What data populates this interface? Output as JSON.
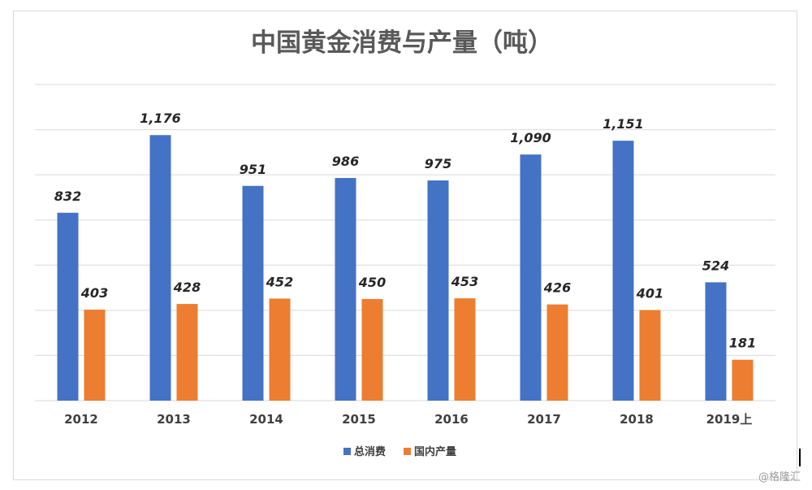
{
  "chart_data": {
    "type": "bar",
    "title": "中国黄金消费与产量（吨）",
    "categories": [
      "2012",
      "2013",
      "2014",
      "2015",
      "2016",
      "2017",
      "2018",
      "2019上"
    ],
    "series": [
      {
        "name": "总消费",
        "color": "#4472C4",
        "values": [
          832,
          1176,
          951,
          986,
          975,
          1090,
          1151,
          524
        ],
        "labels": [
          "832",
          "1,176",
          "951",
          "986",
          "975",
          "1,090",
          "1,151",
          "524"
        ]
      },
      {
        "name": "国内产量",
        "color": "#ED7D31",
        "values": [
          403,
          428,
          452,
          450,
          453,
          426,
          401,
          181
        ],
        "labels": [
          "403",
          "428",
          "452",
          "450",
          "453",
          "426",
          "401",
          "181"
        ]
      }
    ],
    "ylim": [
      0,
      1400
    ],
    "grid": true,
    "legend": "bottom"
  },
  "watermark": "@格隆汇"
}
